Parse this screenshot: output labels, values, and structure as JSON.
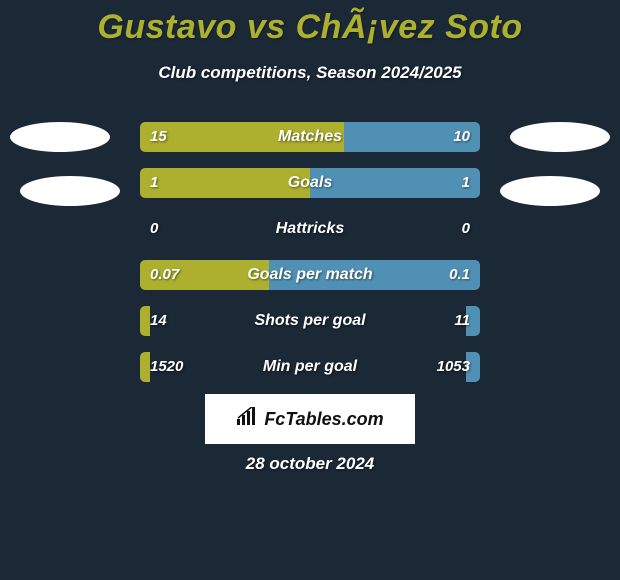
{
  "title": "Gustavo vs ChÃ¡vez Soto",
  "subtitle": "Club competitions, Season 2024/2025",
  "colors": {
    "background": "#1b2836",
    "accent": "#acb02e",
    "left_bar": "#acb02e",
    "right_bar": "#5190b5",
    "text_white": "#ffffff"
  },
  "stats": [
    {
      "label": "Matches",
      "left_val": "15",
      "right_val": "10",
      "left_pct": 60,
      "right_pct": 40
    },
    {
      "label": "Goals",
      "left_val": "1",
      "right_val": "1",
      "left_pct": 50,
      "right_pct": 50
    },
    {
      "label": "Hattricks",
      "left_val": "0",
      "right_val": "0",
      "left_pct": 0,
      "right_pct": 0
    },
    {
      "label": "Goals per match",
      "left_val": "0.07",
      "right_val": "0.1",
      "left_pct": 38,
      "right_pct": 62
    },
    {
      "label": "Shots per goal",
      "left_val": "14",
      "right_val": "11",
      "left_pct": 3,
      "right_pct": 4
    },
    {
      "label": "Min per goal",
      "left_val": "1520",
      "right_val": "1053",
      "left_pct": 3,
      "right_pct": 4
    }
  ],
  "logo": "FcTables.com",
  "date": "28 october 2024"
}
